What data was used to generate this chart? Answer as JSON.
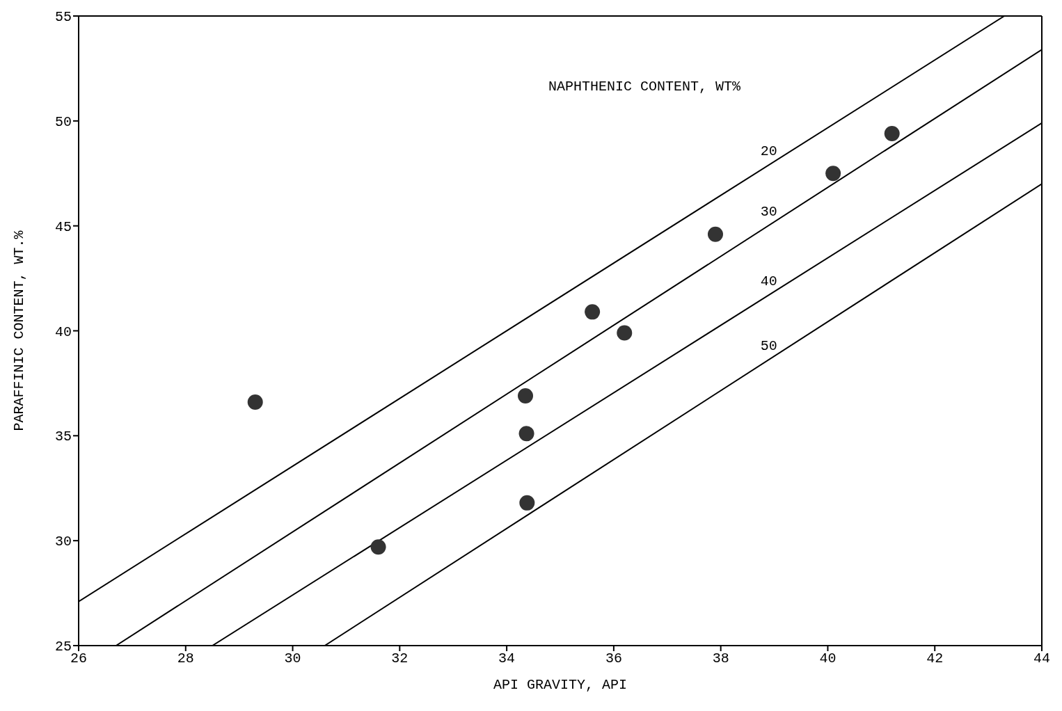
{
  "chart_data": {
    "type": "scatter",
    "xlabel": "API GRAVITY, API",
    "ylabel": "PARAFFINIC CONTENT, WT.%",
    "xlim": [
      26,
      44
    ],
    "ylim": [
      25,
      55
    ],
    "xticks": [
      26,
      28,
      30,
      32,
      34,
      36,
      38,
      40,
      42,
      44
    ],
    "yticks": [
      25,
      30,
      35,
      40,
      45,
      50,
      55
    ],
    "annotations": [
      "NAPHTHENIC CONTENT, WT%"
    ],
    "series": [
      {
        "type": "line",
        "name": "20",
        "color": "#000000",
        "x": [
          26,
          43.3
        ],
        "values": [
          27.1,
          55
        ]
      },
      {
        "type": "line",
        "name": "30",
        "color": "#000000",
        "x": [
          26.7,
          44
        ],
        "values": [
          25,
          53.4
        ]
      },
      {
        "type": "line",
        "name": "40",
        "color": "#000000",
        "x": [
          28.5,
          44
        ],
        "values": [
          25,
          49.9
        ]
      },
      {
        "type": "line",
        "name": "50",
        "color": "#000000",
        "x": [
          30.6,
          44
        ],
        "values": [
          25,
          47
        ]
      },
      {
        "marker": "circle",
        "color": "#333333",
        "x": [
          29.3,
          31.6,
          34.35,
          34.37,
          34.38,
          35.6,
          36.2,
          37.9,
          40.1,
          41.2
        ],
        "values": [
          36.6,
          29.7,
          36.9,
          35.1,
          31.8,
          40.9,
          39.9,
          44.6,
          47.5,
          49.4
        ]
      }
    ]
  }
}
